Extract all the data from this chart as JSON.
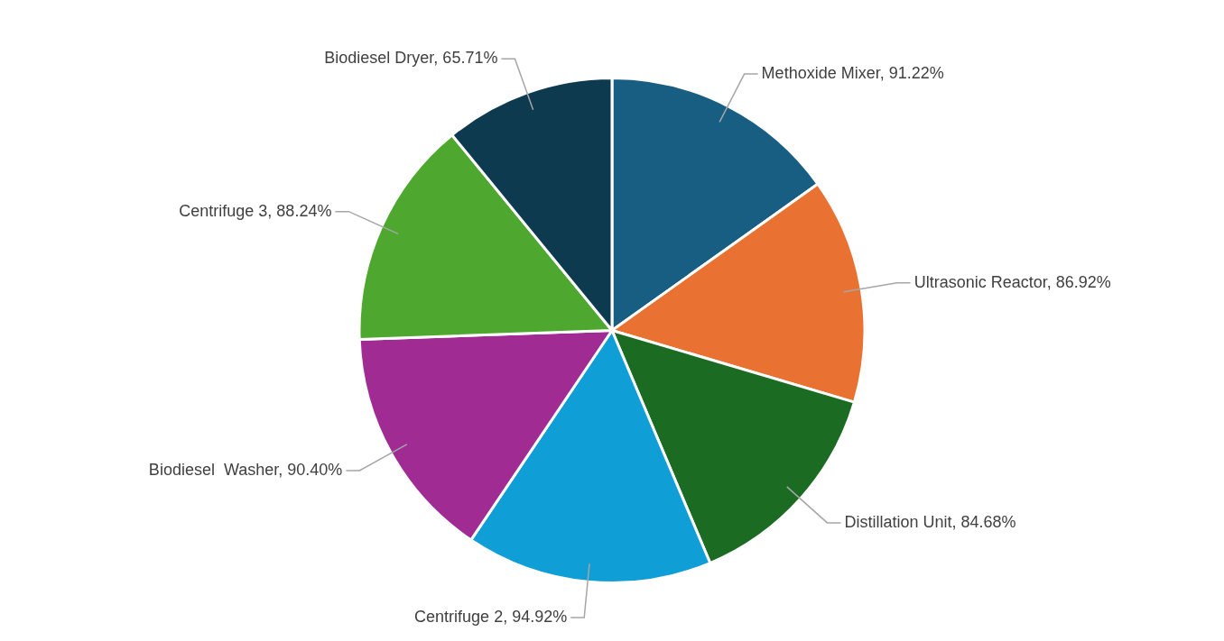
{
  "chart_data": {
    "type": "pie",
    "categories": [
      "Methoxide Mixer",
      "Ultrasonic Reactor",
      "Distillation Unit",
      "Centrifuge 2",
      "Biodiesel  Washer",
      "Centrifuge 3",
      "Biodiesel Dryer"
    ],
    "values": [
      91.22,
      86.92,
      84.68,
      94.92,
      90.4,
      88.24,
      65.71
    ],
    "value_labels": [
      "91.22%",
      "86.92%",
      "84.68%",
      "94.92%",
      "90.40%",
      "88.24%",
      "65.71%"
    ],
    "colors": [
      "#175e82",
      "#e97132",
      "#1b6b23",
      "#0f9ed5",
      "#a02b93",
      "#4ea72e",
      "#0e3a50"
    ],
    "legend": false
  }
}
